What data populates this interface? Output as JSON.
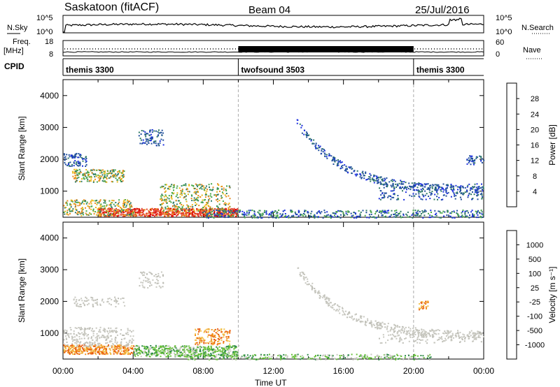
{
  "header": {
    "station": "Saskatoon (fitACF)",
    "beam": "Beam 04",
    "date": "25/Jul/2016"
  },
  "noise_panel": {
    "left_label": "N.Sky",
    "right_label": "N.Search",
    "left_ticks": [
      "10^5",
      "10^0"
    ],
    "right_ticks": [
      "10^5",
      "10^0"
    ]
  },
  "freq_panel": {
    "left_label_1": "Freq.",
    "left_label_2": "[MHz]",
    "right_label": "Nave",
    "left_ticks": [
      "18",
      "8"
    ],
    "right_ticks": [
      "60",
      "0"
    ]
  },
  "cpid_panel": {
    "label": "CPID",
    "modes": [
      {
        "name": "themis 3300",
        "start_hour": 0,
        "end_hour": 10
      },
      {
        "name": "twofsound 3503",
        "start_hour": 10,
        "end_hour": 20
      },
      {
        "name": "themis 3300",
        "start_hour": 20,
        "end_hour": 24
      }
    ]
  },
  "chart_data": [
    {
      "type": "heatmap",
      "name": "power",
      "xlabel": "",
      "ylabel": "Slant Range [km]",
      "xlim": [
        0,
        24
      ],
      "ylim": [
        180,
        4500
      ],
      "yticks": [
        1000,
        2000,
        3000,
        4000
      ],
      "colorbar": {
        "label": "Power [dB]",
        "ticks": [
          "4",
          "8",
          "12",
          "16",
          "20",
          "24",
          "28"
        ],
        "colors": [
          "#1c2fe0",
          "#214f9c",
          "#2f7a66",
          "#4aa84a",
          "#e8b818",
          "#e98b20",
          "#e23b2a",
          "#dd0000"
        ]
      }
    },
    {
      "type": "heatmap",
      "name": "velocity",
      "xlabel": "Time UT",
      "ylabel": "Slant Range [km]",
      "xlim": [
        0,
        24
      ],
      "ylim": [
        180,
        4500
      ],
      "yticks": [
        1000,
        2000,
        3000,
        4000
      ],
      "xticks": [
        "00:00",
        "04:00",
        "08:00",
        "12:00",
        "16:00",
        "20:00",
        "00:00"
      ],
      "colorbar": {
        "label": "Velocity [m s⁻¹]",
        "ticks": [
          "1000",
          "500",
          "100",
          "25",
          "-25",
          "-100",
          "-500",
          "-1000"
        ],
        "colors": [
          "#1e3fb0",
          "#2c6a8e",
          "#2e8a4a",
          "#68c03a",
          "#c8c8c0",
          "#f2c24c",
          "#f2901c",
          "#e85a10",
          "#e21010"
        ]
      }
    }
  ]
}
